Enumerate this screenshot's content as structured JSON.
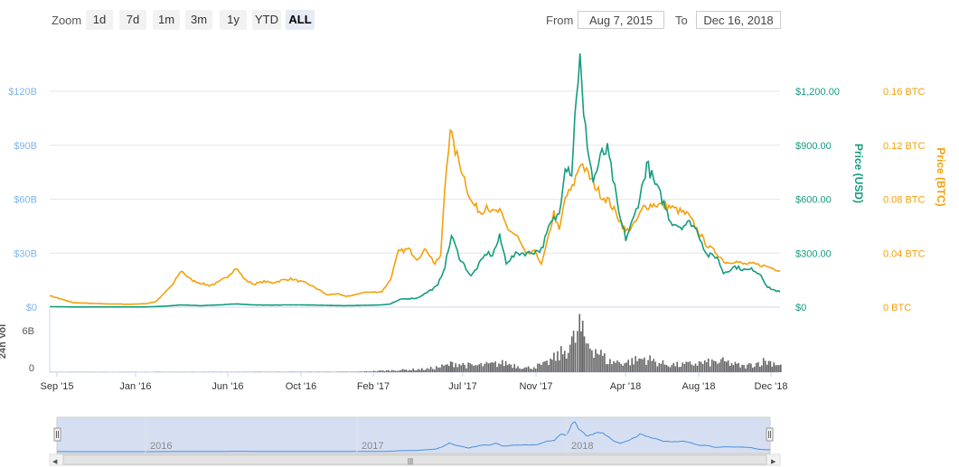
{
  "toolbar": {
    "zoom_label": "Zoom",
    "zoom_buttons": [
      "1d",
      "7d",
      "1m",
      "3m",
      "1y",
      "YTD",
      "ALL"
    ],
    "active": "ALL",
    "from_label": "From",
    "from_value": "Aug 7, 2015",
    "to_label": "To",
    "to_value": "Dec 16, 2018"
  },
  "colors": {
    "usd": "#139c7f",
    "btc": "#f4a00b",
    "market_cap_axis": "#7cb5ec",
    "volume": "#666666",
    "navigator_fill": "#d6dff2",
    "navigator_line": "#4a90d9"
  },
  "chart_data": {
    "type": "line",
    "x_range": [
      "2015-08-07",
      "2018-12-16"
    ],
    "x_ticks": [
      "Sep '15",
      "Jan '16",
      "Jun '16",
      "Oct '16",
      "Feb '17",
      "Jul '17",
      "Nov '17",
      "Apr '18",
      "Aug '18",
      "Dec '18"
    ],
    "axes": {
      "market_cap": {
        "position": "left",
        "ticks": [
          "$0",
          "$30B",
          "$60B",
          "$90B",
          "$120B"
        ],
        "range": [
          0,
          120000000000
        ]
      },
      "price_usd": {
        "position": "right",
        "label": "Price (USD)",
        "ticks": [
          "$0",
          "$300.00",
          "$600.00",
          "$900.00",
          "$1,200.00"
        ],
        "range": [
          0,
          1200
        ]
      },
      "price_btc": {
        "position": "right",
        "label": "Price (BTC)",
        "ticks": [
          "0 BTC",
          "0.04 BTC",
          "0.08 BTC",
          "0.12 BTC",
          "0.16 BTC"
        ],
        "range": [
          0,
          0.16
        ]
      },
      "volume": {
        "position": "left",
        "label": "24h Vol",
        "ticks": [
          "0",
          "6B"
        ],
        "range": [
          0,
          6000000000
        ]
      }
    },
    "series": [
      {
        "name": "Price (USD)",
        "axis": "price_usd",
        "points": [
          [
            "2015-08-07",
            2.8
          ],
          [
            "2015-09-15",
            1.0
          ],
          [
            "2015-12-01",
            0.9
          ],
          [
            "2016-01-15",
            1.0
          ],
          [
            "2016-02-15",
            5.0
          ],
          [
            "2016-03-15",
            12.0
          ],
          [
            "2016-04-15",
            8.0
          ],
          [
            "2016-05-15",
            12.0
          ],
          [
            "2016-06-15",
            18.0
          ],
          [
            "2016-07-15",
            12.0
          ],
          [
            "2016-08-15",
            11.0
          ],
          [
            "2016-09-15",
            12.5
          ],
          [
            "2016-10-15",
            12.0
          ],
          [
            "2016-11-15",
            9.5
          ],
          [
            "2016-12-15",
            8.0
          ],
          [
            "2017-01-15",
            10.0
          ],
          [
            "2017-02-15",
            12.5
          ],
          [
            "2017-03-01",
            17.0
          ],
          [
            "2017-03-20",
            45.0
          ],
          [
            "2017-04-15",
            50.0
          ],
          [
            "2017-05-01",
            80.0
          ],
          [
            "2017-05-20",
            120.0
          ],
          [
            "2017-06-01",
            230.0
          ],
          [
            "2017-06-12",
            395.0
          ],
          [
            "2017-06-25",
            280.0
          ],
          [
            "2017-07-15",
            170.0
          ],
          [
            "2017-07-25",
            220.0
          ],
          [
            "2017-08-10",
            300.0
          ],
          [
            "2017-08-20",
            290.0
          ],
          [
            "2017-09-01",
            390.0
          ],
          [
            "2017-09-12",
            250.0
          ],
          [
            "2017-10-01",
            300.0
          ],
          [
            "2017-10-20",
            300.0
          ],
          [
            "2017-11-10",
            320.0
          ],
          [
            "2017-11-25",
            460.0
          ],
          [
            "2017-12-10",
            520.0
          ],
          [
            "2017-12-20",
            800.0
          ],
          [
            "2017-12-31",
            750.0
          ],
          [
            "2018-01-08",
            1200.0
          ],
          [
            "2018-01-14",
            1380.0
          ],
          [
            "2018-01-20",
            1050.0
          ],
          [
            "2018-02-05",
            700.0
          ],
          [
            "2018-02-20",
            850.0
          ],
          [
            "2018-03-01",
            870.0
          ],
          [
            "2018-03-10",
            720.0
          ],
          [
            "2018-03-20",
            520.0
          ],
          [
            "2018-04-01",
            380.0
          ],
          [
            "2018-04-15",
            500.0
          ],
          [
            "2018-05-01",
            700.0
          ],
          [
            "2018-05-06",
            800.0
          ],
          [
            "2018-05-20",
            680.0
          ],
          [
            "2018-06-01",
            600.0
          ],
          [
            "2018-06-15",
            480.0
          ],
          [
            "2018-07-01",
            450.0
          ],
          [
            "2018-07-20",
            470.0
          ],
          [
            "2018-08-01",
            410.0
          ],
          [
            "2018-08-15",
            290.0
          ],
          [
            "2018-09-01",
            280.0
          ],
          [
            "2018-09-12",
            190.0
          ],
          [
            "2018-10-01",
            225.0
          ],
          [
            "2018-10-20",
            205.0
          ],
          [
            "2018-11-01",
            210.0
          ],
          [
            "2018-11-14",
            180.0
          ],
          [
            "2018-11-25",
            110.0
          ],
          [
            "2018-12-10",
            90.0
          ],
          [
            "2018-12-16",
            85.0
          ]
        ]
      },
      {
        "name": "Price (BTC)",
        "axis": "price_btc",
        "points": [
          [
            "2015-08-07",
            0.0085
          ],
          [
            "2015-09-15",
            0.0033
          ],
          [
            "2015-11-01",
            0.0025
          ],
          [
            "2015-12-15",
            0.0021
          ],
          [
            "2016-01-15",
            0.0025
          ],
          [
            "2016-02-01",
            0.004
          ],
          [
            "2016-02-15",
            0.01
          ],
          [
            "2016-03-01",
            0.017
          ],
          [
            "2016-03-15",
            0.027
          ],
          [
            "2016-04-01",
            0.02
          ],
          [
            "2016-04-15",
            0.018
          ],
          [
            "2016-05-01",
            0.016
          ],
          [
            "2016-05-15",
            0.018
          ],
          [
            "2016-06-01",
            0.023
          ],
          [
            "2016-06-15",
            0.029
          ],
          [
            "2016-07-01",
            0.02
          ],
          [
            "2016-07-15",
            0.017
          ],
          [
            "2016-08-01",
            0.019
          ],
          [
            "2016-08-15",
            0.018
          ],
          [
            "2016-09-01",
            0.02
          ],
          [
            "2016-09-15",
            0.021
          ],
          [
            "2016-10-01",
            0.019
          ],
          [
            "2016-10-15",
            0.017
          ],
          [
            "2016-11-01",
            0.013
          ],
          [
            "2016-11-15",
            0.009
          ],
          [
            "2016-12-01",
            0.01
          ],
          [
            "2016-12-15",
            0.008
          ],
          [
            "2017-01-01",
            0.009
          ],
          [
            "2017-01-15",
            0.011
          ],
          [
            "2017-02-01",
            0.011
          ],
          [
            "2017-02-15",
            0.0115
          ],
          [
            "2017-03-01",
            0.02
          ],
          [
            "2017-03-15",
            0.041
          ],
          [
            "2017-04-01",
            0.043
          ],
          [
            "2017-04-15",
            0.036
          ],
          [
            "2017-05-01",
            0.043
          ],
          [
            "2017-05-15",
            0.032
          ],
          [
            "2017-05-25",
            0.038
          ],
          [
            "2017-06-01",
            0.09
          ],
          [
            "2017-06-10",
            0.134
          ],
          [
            "2017-06-15",
            0.12
          ],
          [
            "2017-07-01",
            0.1
          ],
          [
            "2017-07-15",
            0.078
          ],
          [
            "2017-08-01",
            0.07
          ],
          [
            "2017-08-10",
            0.076
          ],
          [
            "2017-08-20",
            0.07
          ],
          [
            "2017-09-01",
            0.071
          ],
          [
            "2017-09-15",
            0.058
          ],
          [
            "2017-10-01",
            0.052
          ],
          [
            "2017-10-15",
            0.039
          ],
          [
            "2017-11-01",
            0.041
          ],
          [
            "2017-11-10",
            0.031
          ],
          [
            "2017-11-20",
            0.048
          ],
          [
            "2017-12-01",
            0.07
          ],
          [
            "2017-12-10",
            0.056
          ],
          [
            "2017-12-20",
            0.081
          ],
          [
            "2018-01-01",
            0.088
          ],
          [
            "2018-01-15",
            0.108
          ],
          [
            "2018-01-25",
            0.1
          ],
          [
            "2018-02-05",
            0.092
          ],
          [
            "2018-02-20",
            0.082
          ],
          [
            "2018-03-01",
            0.08
          ],
          [
            "2018-03-15",
            0.07
          ],
          [
            "2018-04-01",
            0.056
          ],
          [
            "2018-04-15",
            0.061
          ],
          [
            "2018-05-01",
            0.074
          ],
          [
            "2018-05-15",
            0.076
          ],
          [
            "2018-06-01",
            0.076
          ],
          [
            "2018-06-15",
            0.074
          ],
          [
            "2018-07-01",
            0.071
          ],
          [
            "2018-07-15",
            0.068
          ],
          [
            "2018-08-01",
            0.056
          ],
          [
            "2018-08-15",
            0.046
          ],
          [
            "2018-09-01",
            0.04
          ],
          [
            "2018-09-15",
            0.033
          ],
          [
            "2018-10-01",
            0.034
          ],
          [
            "2018-10-15",
            0.032
          ],
          [
            "2018-11-01",
            0.032
          ],
          [
            "2018-11-15",
            0.031
          ],
          [
            "2018-11-25",
            0.03
          ],
          [
            "2018-12-10",
            0.028
          ],
          [
            "2018-12-16",
            0.027
          ]
        ]
      },
      {
        "name": "24h Vol",
        "axis": "volume",
        "type": "bar",
        "points": [
          [
            "2015-08-07",
            0.02
          ],
          [
            "2016-06-01",
            0.03
          ],
          [
            "2017-01-01",
            0.05
          ],
          [
            "2017-03-15",
            0.3
          ],
          [
            "2017-05-01",
            0.45
          ],
          [
            "2017-06-01",
            0.9
          ],
          [
            "2017-06-15",
            1.3
          ],
          [
            "2017-07-15",
            0.9
          ],
          [
            "2017-08-15",
            1.1
          ],
          [
            "2017-09-10",
            1.3
          ],
          [
            "2017-10-15",
            0.6
          ],
          [
            "2017-11-15",
            1.1
          ],
          [
            "2017-12-15",
            2.8
          ],
          [
            "2018-01-05",
            4.8
          ],
          [
            "2018-01-12",
            6.6
          ],
          [
            "2018-01-20",
            4.5
          ],
          [
            "2018-02-05",
            3.6
          ],
          [
            "2018-03-01",
            1.5
          ],
          [
            "2018-04-01",
            1.4
          ],
          [
            "2018-05-01",
            2.0
          ],
          [
            "2018-06-01",
            1.2
          ],
          [
            "2018-07-01",
            1.0
          ],
          [
            "2018-08-01",
            1.3
          ],
          [
            "2018-09-10",
            1.5
          ],
          [
            "2018-10-15",
            0.8
          ],
          [
            "2018-11-20",
            1.6
          ],
          [
            "2018-12-16",
            1.1
          ]
        ]
      }
    ],
    "navigator": {
      "tick_labels": [
        "2016",
        "2017",
        "2018"
      ]
    }
  }
}
